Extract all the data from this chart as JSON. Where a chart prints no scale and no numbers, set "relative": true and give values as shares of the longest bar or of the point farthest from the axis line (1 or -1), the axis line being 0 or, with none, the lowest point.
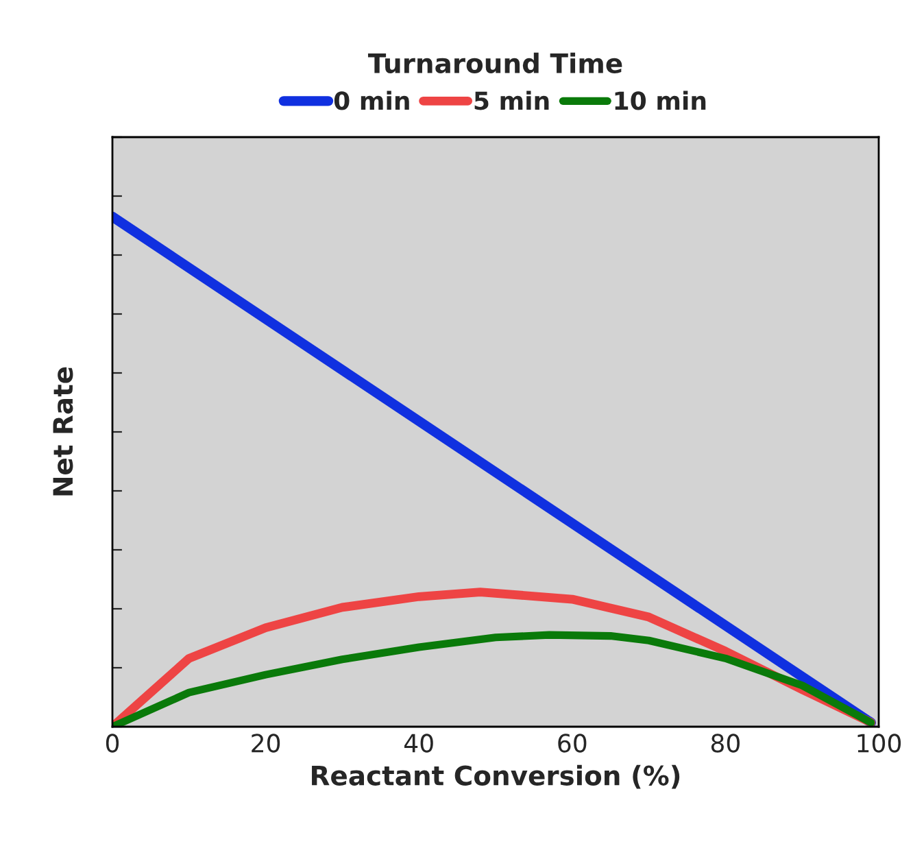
{
  "chart_data": {
    "type": "line",
    "relative": true,
    "legend_title": "Turnaround Time",
    "legend": "top",
    "xlabel": "Reactant Conversion (%)",
    "ylabel": "Net Rate",
    "xlim": [
      0,
      100
    ],
    "xticks": [
      0,
      20,
      40,
      60,
      80,
      100
    ],
    "grid": false,
    "marker": "none",
    "line_style": "solid",
    "tick_labels": "x",
    "series": [
      {
        "name": "0 min",
        "color": "#1030e0",
        "x": [
          0,
          99
        ],
        "values": [
          1,
          0.008
        ]
      },
      {
        "name": "5 min",
        "color": "#ee4444",
        "x": [
          0,
          10,
          20,
          30,
          40,
          48,
          60,
          70,
          80,
          90,
          99
        ],
        "values": [
          0,
          0.134,
          0.194,
          0.234,
          0.255,
          0.264,
          0.25,
          0.215,
          0.148,
          0.073,
          0.008
        ]
      },
      {
        "name": "10 min",
        "color": "#0a7a0a",
        "x": [
          0,
          10,
          20,
          30,
          40,
          50,
          57,
          65,
          70,
          80,
          90,
          99
        ],
        "values": [
          0,
          0.067,
          0.102,
          0.132,
          0.156,
          0.175,
          0.18,
          0.178,
          0.169,
          0.134,
          0.081,
          0.008
        ]
      }
    ]
  }
}
